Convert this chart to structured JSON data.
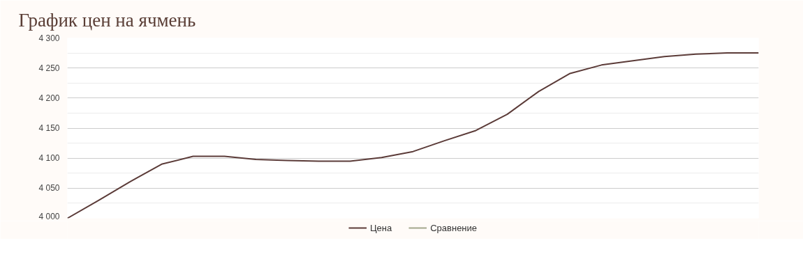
{
  "chart_data": {
    "type": "line",
    "title": "График цен на ячмень",
    "categories": [
      null,
      null,
      null,
      null,
      null,
      null,
      null,
      null,
      null,
      null,
      null,
      null,
      null,
      null,
      null,
      null,
      null,
      null,
      null,
      null,
      null,
      null,
      null
    ],
    "series": [
      {
        "name": "Цена",
        "color": "#5b3b38",
        "values": [
          4000,
          4030,
          4061,
          4090,
          4103,
          4103,
          4098,
          4096,
          4095,
          4095,
          4101,
          4111,
          4129,
          4146,
          4173,
          4211,
          4241,
          4255,
          4262,
          4269,
          4273,
          4275,
          4275
        ]
      },
      {
        "name": "Сравнение",
        "color": "#a3a68c",
        "values": [
          null,
          null,
          null,
          null,
          null,
          null,
          null,
          null,
          null,
          null,
          null,
          null,
          null,
          null,
          null,
          null,
          null,
          null,
          null,
          null,
          null,
          null,
          null
        ]
      }
    ],
    "ylim": [
      4000,
      4300
    ],
    "yticks": [
      {
        "value": 4000,
        "label": "4 000"
      },
      {
        "value": 4025,
        "label": null
      },
      {
        "value": 4050,
        "label": "4 050"
      },
      {
        "value": 4075,
        "label": null
      },
      {
        "value": 4100,
        "label": "4 100"
      },
      {
        "value": 4125,
        "label": null
      },
      {
        "value": 4150,
        "label": "4 150"
      },
      {
        "value": 4175,
        "label": null
      },
      {
        "value": 4200,
        "label": "4 200"
      },
      {
        "value": 4225,
        "label": null
      },
      {
        "value": 4250,
        "label": "4 250"
      },
      {
        "value": 4275,
        "label": null
      },
      {
        "value": 4300,
        "label": "4 300"
      }
    ],
    "grid": "y",
    "legend": "bottom",
    "tick_labels": "y",
    "marker": "none",
    "line_style": "solid"
  }
}
